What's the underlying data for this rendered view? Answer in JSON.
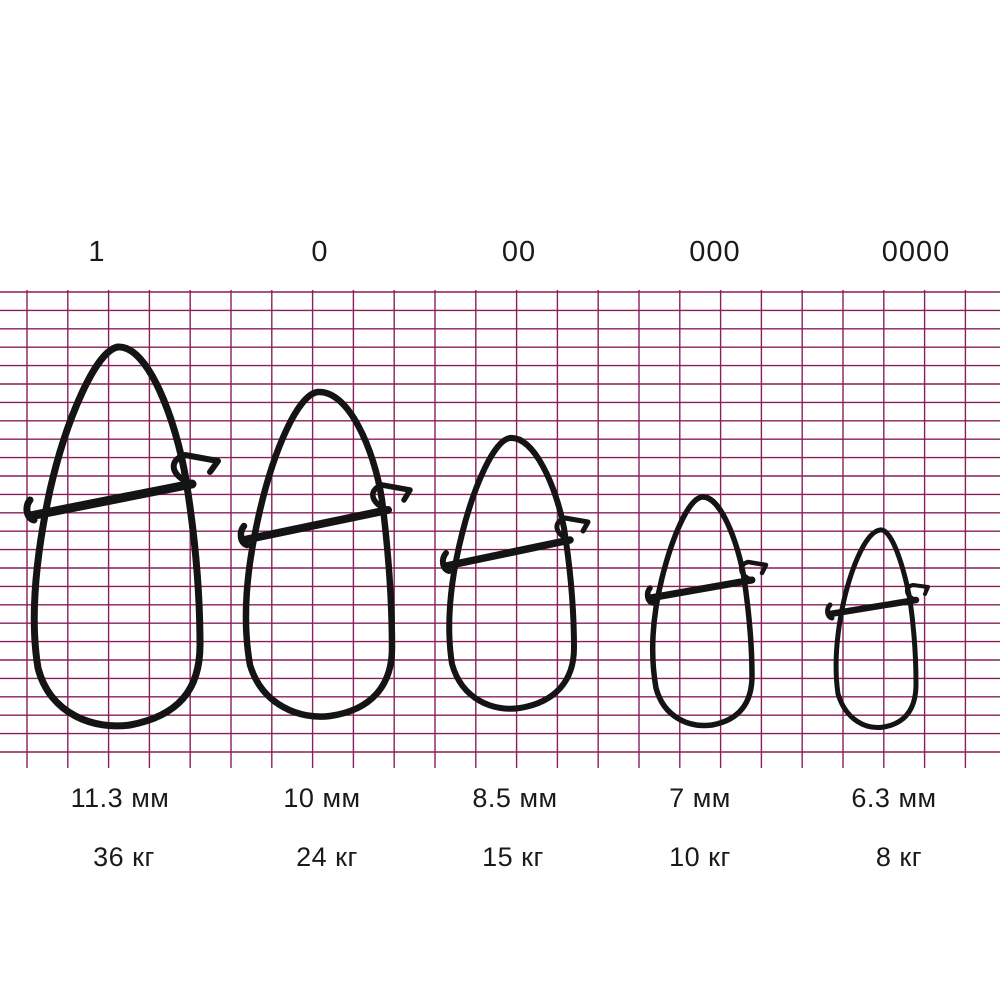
{
  "colors": {
    "grid_line": "#8a1f5a",
    "wire": "#141414",
    "background": "#ffffff",
    "text": "#1a1a1a"
  },
  "snaps": [
    {
      "size": "1",
      "length": "11.3 мм",
      "load": "36 кг",
      "length_mm": 11.3,
      "load_kg": 36
    },
    {
      "size": "0",
      "length": "10 мм",
      "load": "24 кг",
      "length_mm": 10,
      "load_kg": 24
    },
    {
      "size": "00",
      "length": "8.5 мм",
      "load": "15 кг",
      "length_mm": 8.5,
      "load_kg": 15
    },
    {
      "size": "000",
      "length": "7 мм",
      "load": "10 кг",
      "length_mm": 7,
      "load_kg": 10
    },
    {
      "size": "0000",
      "length": "6.3 мм",
      "load": "8 кг",
      "length_mm": 6.3,
      "load_kg": 8
    }
  ]
}
